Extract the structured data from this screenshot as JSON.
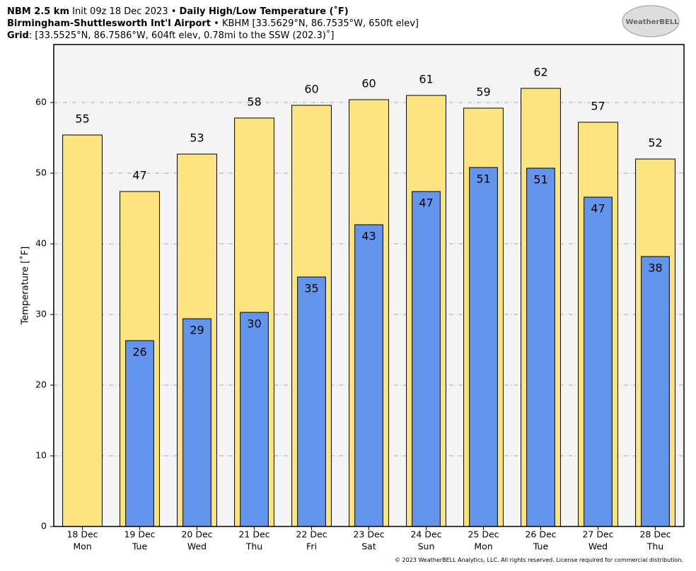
{
  "chart_data": {
    "type": "bar",
    "header": {
      "line1": {
        "model": "NBM 2.5 km",
        "init": "Init 09z 18 Dec 2023 •",
        "product": "Daily High/Low Temperature (˚F)"
      },
      "line2": {
        "station": "Birmingham-Shuttlesworth Int'l Airport",
        "details": "• KBHM [33.5629°N, 86.7535°W, 650ft elev]"
      },
      "line3": {
        "label": "Grid",
        "details": ": [33.5525°N, 86.7586°W, 604ft elev, 0.78mi to the SSW (202.3)˚]"
      }
    },
    "logo_text": "WeatherBELL",
    "footer": "© 2023 WeatherBELL Analytics, LLC. All rights reserved. License required for commercial distribution.",
    "ylabel": "Temperature [˚F]",
    "categories": [
      "18 Dec",
      "19 Dec",
      "20 Dec",
      "21 Dec",
      "22 Dec",
      "23 Dec",
      "24 Dec",
      "25 Dec",
      "26 Dec",
      "27 Dec",
      "28 Dec"
    ],
    "weekdays": [
      "Mon",
      "Tue",
      "Wed",
      "Thu",
      "Fri",
      "Sat",
      "Sun",
      "Mon",
      "Tue",
      "Wed",
      "Thu"
    ],
    "series": [
      {
        "color": "#fde47f",
        "values": [
          55.4,
          47.4,
          52.7,
          57.8,
          59.6,
          60.4,
          61.0,
          59.2,
          62.0,
          57.2,
          52.0
        ],
        "value_labels": [
          "55",
          "47",
          "53",
          "58",
          "60",
          "60",
          "61",
          "59",
          "62",
          "57",
          "52"
        ]
      },
      {
        "color": "#6495ed",
        "values": [
          null,
          26.3,
          29.4,
          30.3,
          35.3,
          42.7,
          47.4,
          50.8,
          50.7,
          46.6,
          38.2
        ],
        "value_labels": [
          null,
          "26",
          "29",
          "30",
          "35",
          "43",
          "47",
          "51",
          "51",
          "47",
          "38"
        ]
      }
    ],
    "ylim": [
      0,
      68.2
    ],
    "yticks": [
      0,
      10,
      20,
      30,
      40,
      50,
      60
    ],
    "grid": true
  }
}
